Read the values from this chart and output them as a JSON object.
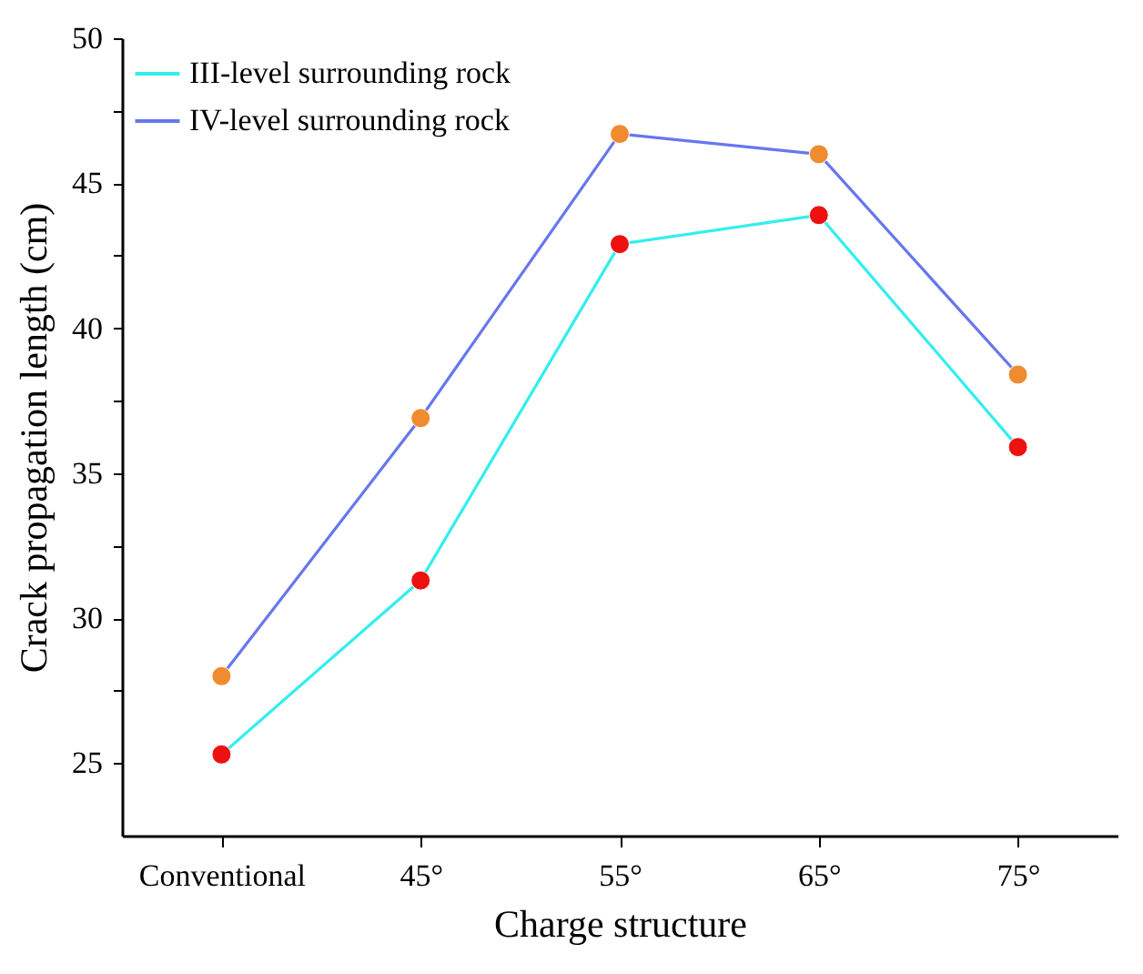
{
  "chart_data": {
    "type": "line",
    "xlabel": "Charge structure",
    "ylabel": "Crack propagation length (cm)",
    "categories": [
      "Conventional",
      "45°",
      "55°",
      "65°",
      "75°"
    ],
    "series": [
      {
        "name": "III-level surrounding rock",
        "color": "#33eeee",
        "colors": [
          "#ee1111",
          "#ee1111",
          "#ee1111",
          "#ee1111",
          "#ee1111"
        ],
        "values": [
          25.3,
          31.3,
          42.9,
          43.9,
          35.9
        ]
      },
      {
        "name": "IV-level surrounding rock",
        "color": "#6677ee",
        "colors": [
          "#f08c30",
          "#f08c30",
          "#f08c30",
          "#f08c30",
          "#f08c30"
        ],
        "values": [
          28.0,
          36.9,
          46.7,
          46.0,
          38.4
        ]
      }
    ],
    "ylim": [
      22.5,
      50
    ],
    "yticks": [
      25,
      {
        "value": 27.5,
        "label": null
      },
      30,
      {
        "value": 32.5,
        "label": null
      },
      35,
      {
        "value": 37.5,
        "label": null
      },
      40,
      {
        "value": 42.5,
        "label": null
      },
      45,
      {
        "value": 47.5,
        "label": null
      },
      50
    ],
    "grid": false,
    "legend": "top left",
    "marker": "circle",
    "line_style": "solid"
  }
}
